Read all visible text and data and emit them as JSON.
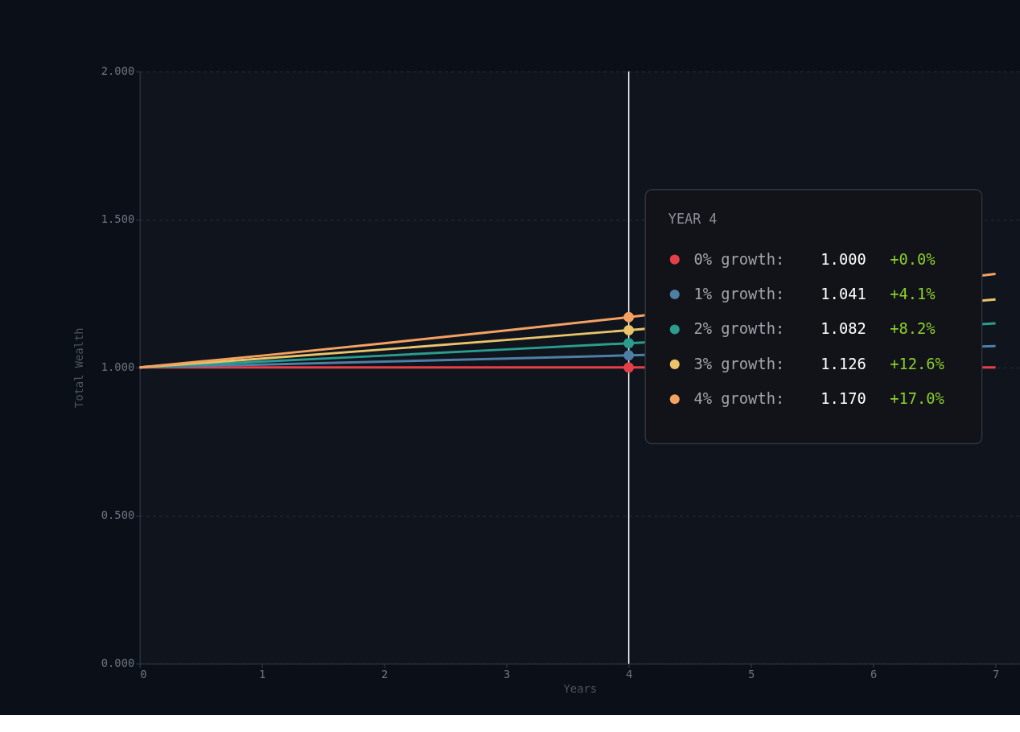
{
  "chart_data": {
    "type": "line",
    "xlabel": "Years",
    "ylabel": "Total Wealth",
    "legend_title": "YEAR 4",
    "x": [
      0,
      1,
      2,
      3,
      4,
      5,
      6,
      7
    ],
    "series": [
      {
        "name": "0% growth:",
        "color": "#e5404a",
        "values": [
          1.0,
          1.0,
          1.0,
          1.0,
          1.0,
          null,
          null,
          1.0
        ]
      },
      {
        "name": "1% growth:",
        "color": "#4e7fa5",
        "values": [
          1.0,
          1.01,
          1.02,
          1.03,
          1.041,
          null,
          null,
          1.072
        ]
      },
      {
        "name": "2% growth:",
        "color": "#2a9d8f",
        "values": [
          1.0,
          1.02,
          1.04,
          1.061,
          1.082,
          null,
          null,
          1.149
        ]
      },
      {
        "name": "3% growth:",
        "color": "#e9c46a",
        "values": [
          1.0,
          1.03,
          1.061,
          1.093,
          1.126,
          null,
          null,
          1.23
        ]
      },
      {
        "name": "4% growth:",
        "color": "#f4a261",
        "values": [
          1.0,
          1.04,
          1.082,
          1.125,
          1.17,
          null,
          null,
          1.316
        ]
      }
    ],
    "xlim": [
      0,
      7.2
    ],
    "xticks": [
      0,
      1,
      2,
      3,
      4,
      5,
      6,
      7
    ],
    "ylim": [
      0,
      2
    ],
    "yticks": [
      {
        "value": 0,
        "label": "0.000"
      },
      {
        "value": 0.5,
        "label": "0.500"
      },
      {
        "value": 1,
        "label": "1.000"
      },
      {
        "value": 1.5,
        "label": "1.500"
      },
      {
        "value": 2,
        "label": "2.000"
      }
    ],
    "ref_lines": [
      {
        "axis": "x",
        "value": 4,
        "color": "#ffffff"
      }
    ],
    "annotations": [
      "1.000",
      "+0.0%",
      "1.041",
      "+4.1%",
      "1.082",
      "+8.2%",
      "1.126",
      "+12.6%",
      "1.170",
      "+17.0%"
    ],
    "grid": "y",
    "legend": "right",
    "marker": "none",
    "line_style": "solid"
  }
}
